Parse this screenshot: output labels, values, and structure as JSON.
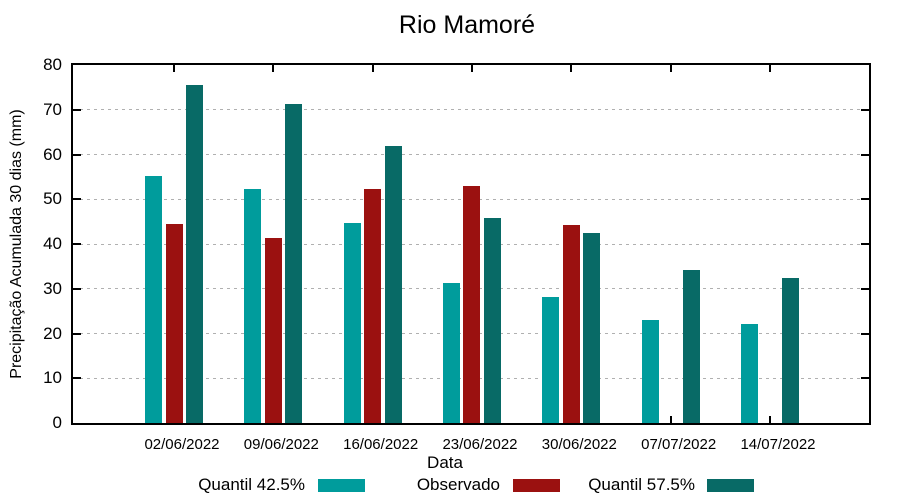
{
  "chart_data": {
    "type": "bar",
    "title": "Rio Mamoré",
    "xlabel": "Data",
    "ylabel": "Precipitação Acumulada 30 dias (mm)",
    "ylim": [
      0,
      80
    ],
    "ytick_step": 10,
    "yticks": [
      0,
      10,
      20,
      30,
      40,
      50,
      60,
      70,
      80
    ],
    "grid": "horizontal-dotted",
    "legend_position": "bottom-horizontal",
    "categories": [
      "02/06/2022",
      "09/06/2022",
      "16/06/2022",
      "23/06/2022",
      "30/06/2022",
      "07/07/2022",
      "14/07/2022"
    ],
    "series": [
      {
        "name": "Quantil 42.5%",
        "color": "#009C9C",
        "values": [
          55.2,
          52.3,
          44.8,
          31.3,
          28.2,
          23.0,
          22.2
        ]
      },
      {
        "name": "Observado",
        "color": "#9B1110",
        "values": [
          44.4,
          41.4,
          52.3,
          53.0,
          44.3,
          null,
          null
        ]
      },
      {
        "name": "Quantil 57.5%",
        "color": "#086A66",
        "values": [
          75.6,
          71.3,
          61.8,
          45.9,
          42.4,
          34.2,
          32.4
        ]
      }
    ],
    "colors": {
      "axis": "#000000",
      "grid": "#b0b0b0",
      "background": "#ffffff",
      "text": "#000000"
    }
  }
}
